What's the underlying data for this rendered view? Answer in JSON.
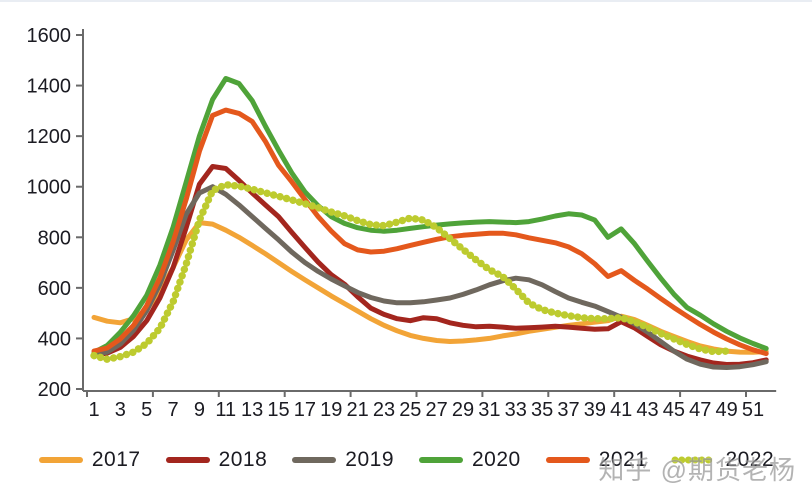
{
  "watermark": {
    "text": "知乎 @期货老杨",
    "color": "#979797"
  },
  "page": {
    "background": "#ffffff",
    "text_color": "#1b1b22",
    "axis_color": "#6a6a6a"
  },
  "chart_data": {
    "type": "line",
    "title": "",
    "xlabel": "",
    "ylabel": "",
    "x_range": [
      1,
      52
    ],
    "x_tick_labels": [
      1,
      3,
      5,
      7,
      9,
      11,
      13,
      15,
      17,
      19,
      21,
      23,
      25,
      27,
      29,
      31,
      33,
      35,
      37,
      39,
      41,
      43,
      45,
      47,
      49,
      51
    ],
    "axis_tick_weeks": [
      1,
      6,
      11,
      16,
      21,
      26,
      31,
      36,
      41,
      46,
      51
    ],
    "ylim": [
      200,
      1600
    ],
    "yticks": [
      200,
      400,
      600,
      800,
      1000,
      1200,
      1400,
      1600
    ],
    "grid": false,
    "legend_position": "bottom",
    "series": [
      {
        "name": "2017",
        "color": "#F2A437",
        "style": "solid",
        "values": [
          483,
          468,
          462,
          478,
          515,
          585,
          680,
          790,
          858,
          852,
          828,
          800,
          768,
          735,
          700,
          665,
          632,
          600,
          568,
          538,
          508,
          478,
          452,
          430,
          412,
          400,
          392,
          388,
          390,
          394,
          400,
          410,
          418,
          428,
          436,
          444,
          452,
          458,
          464,
          470,
          488,
          475,
          452,
          428,
          408,
          388,
          370,
          358,
          350,
          346,
          345,
          348
        ]
      },
      {
        "name": "2018",
        "color": "#A3261E",
        "style": "solid",
        "values": [
          335,
          342,
          365,
          408,
          470,
          560,
          680,
          840,
          1010,
          1080,
          1072,
          1025,
          975,
          928,
          882,
          820,
          760,
          702,
          652,
          615,
          565,
          520,
          495,
          478,
          470,
          482,
          478,
          462,
          452,
          446,
          448,
          445,
          440,
          442,
          445,
          448,
          445,
          440,
          436,
          438,
          466,
          442,
          408,
          375,
          350,
          330,
          315,
          303,
          297,
          298,
          304,
          315
        ]
      },
      {
        "name": "2019",
        "color": "#6F685E",
        "style": "solid",
        "values": [
          338,
          346,
          378,
          432,
          510,
          615,
          748,
          892,
          975,
          1000,
          970,
          928,
          882,
          836,
          790,
          742,
          700,
          665,
          635,
          608,
          582,
          562,
          548,
          541,
          541,
          545,
          552,
          560,
          574,
          592,
          612,
          628,
          638,
          632,
          612,
          585,
          560,
          543,
          528,
          506,
          484,
          458,
          425,
          388,
          350,
          318,
          298,
          287,
          285,
          288,
          296,
          308
        ]
      },
      {
        "name": "2020",
        "color": "#4FA339",
        "style": "solid",
        "values": [
          345,
          372,
          425,
          490,
          570,
          690,
          840,
          1020,
          1200,
          1345,
          1428,
          1408,
          1340,
          1240,
          1145,
          1055,
          980,
          925,
          882,
          855,
          838,
          828,
          824,
          828,
          835,
          842,
          848,
          853,
          857,
          860,
          862,
          860,
          858,
          862,
          872,
          884,
          893,
          888,
          868,
          800,
          833,
          775,
          705,
          638,
          575,
          522,
          492,
          458,
          428,
          402,
          380,
          360
        ]
      },
      {
        "name": "2021",
        "color": "#E4581C",
        "style": "solid",
        "values": [
          350,
          362,
          398,
          452,
          530,
          640,
          782,
          952,
          1140,
          1282,
          1303,
          1290,
          1258,
          1180,
          1085,
          1020,
          950,
          882,
          825,
          775,
          750,
          742,
          745,
          755,
          768,
          780,
          792,
          802,
          808,
          812,
          816,
          816,
          810,
          798,
          788,
          778,
          762,
          735,
          695,
          645,
          668,
          630,
          595,
          558,
          522,
          488,
          455,
          425,
          398,
          375,
          355,
          340
        ]
      },
      {
        "name": "2022",
        "color": "#BDCB2F",
        "style": "dotted",
        "values": [
          332,
          318,
          328,
          346,
          380,
          440,
          545,
          695,
          868,
          985,
          1008,
          1002,
          990,
          976,
          962,
          948,
          933,
          917,
          900,
          885,
          866,
          850,
          846,
          860,
          876,
          868,
          838,
          795,
          752,
          710,
          672,
          645,
          595,
          540,
          514,
          500,
          490,
          482,
          478,
          478,
          482,
          466,
          444,
          420,
          398,
          376,
          358,
          348,
          350
        ]
      }
    ]
  }
}
